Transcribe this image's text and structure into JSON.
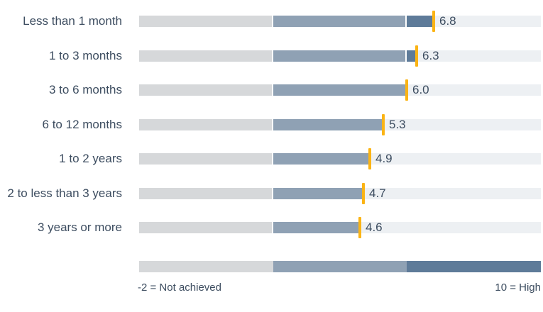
{
  "chart_data": {
    "type": "bar",
    "title": "",
    "categories": [
      "Less than 1 month",
      "1 to 3 months",
      "3 to 6 months",
      "6 to 12 months",
      "1 to 2 years",
      "2 to less than 3 years",
      "3 years or more"
    ],
    "values": [
      6.8,
      6.3,
      6.0,
      5.3,
      4.9,
      4.7,
      4.6
    ],
    "value_labels": [
      "6.8",
      "6.3",
      "6.0",
      "5.3",
      "4.9",
      "4.7",
      "4.6"
    ],
    "xlim": [
      -2,
      10
    ],
    "bands": [
      {
        "name": "band-not-achieved",
        "from": -2,
        "to": 2,
        "color": "#d6d8da"
      },
      {
        "name": "band-mid",
        "from": 2,
        "to": 6,
        "color": "#8fa1b4"
      },
      {
        "name": "band-high",
        "from": 6,
        "to": 10,
        "color": "#5e7b99"
      }
    ],
    "marker_color": "#fbb415",
    "track_color": "#edf0f3",
    "legend": {
      "min_label": "-2 = Not achieved",
      "max_label": "10 = High"
    },
    "layout_hints": {
      "grid": false,
      "legend_position": "bottom",
      "label_color": "#3d4d60"
    }
  }
}
